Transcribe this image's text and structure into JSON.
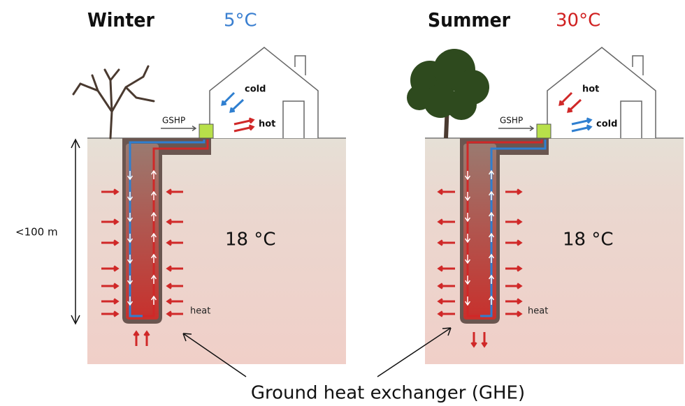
{
  "panels": [
    {
      "title": "Winter",
      "temperature": "5°C",
      "ground_temperature": "18 °C",
      "indoor_top": "cold",
      "indoor_bottom": "hot",
      "pump": "GSHP",
      "flow": "heat"
    },
    {
      "title": "Summer",
      "temperature": "30°C",
      "ground_temperature": "18 °C",
      "indoor_top": "hot",
      "indoor_bottom": "cold",
      "pump": "GSHP",
      "flow": "heat"
    }
  ],
  "depth": "<100 m",
  "caption": "Ground heat exchanger (GHE)"
}
